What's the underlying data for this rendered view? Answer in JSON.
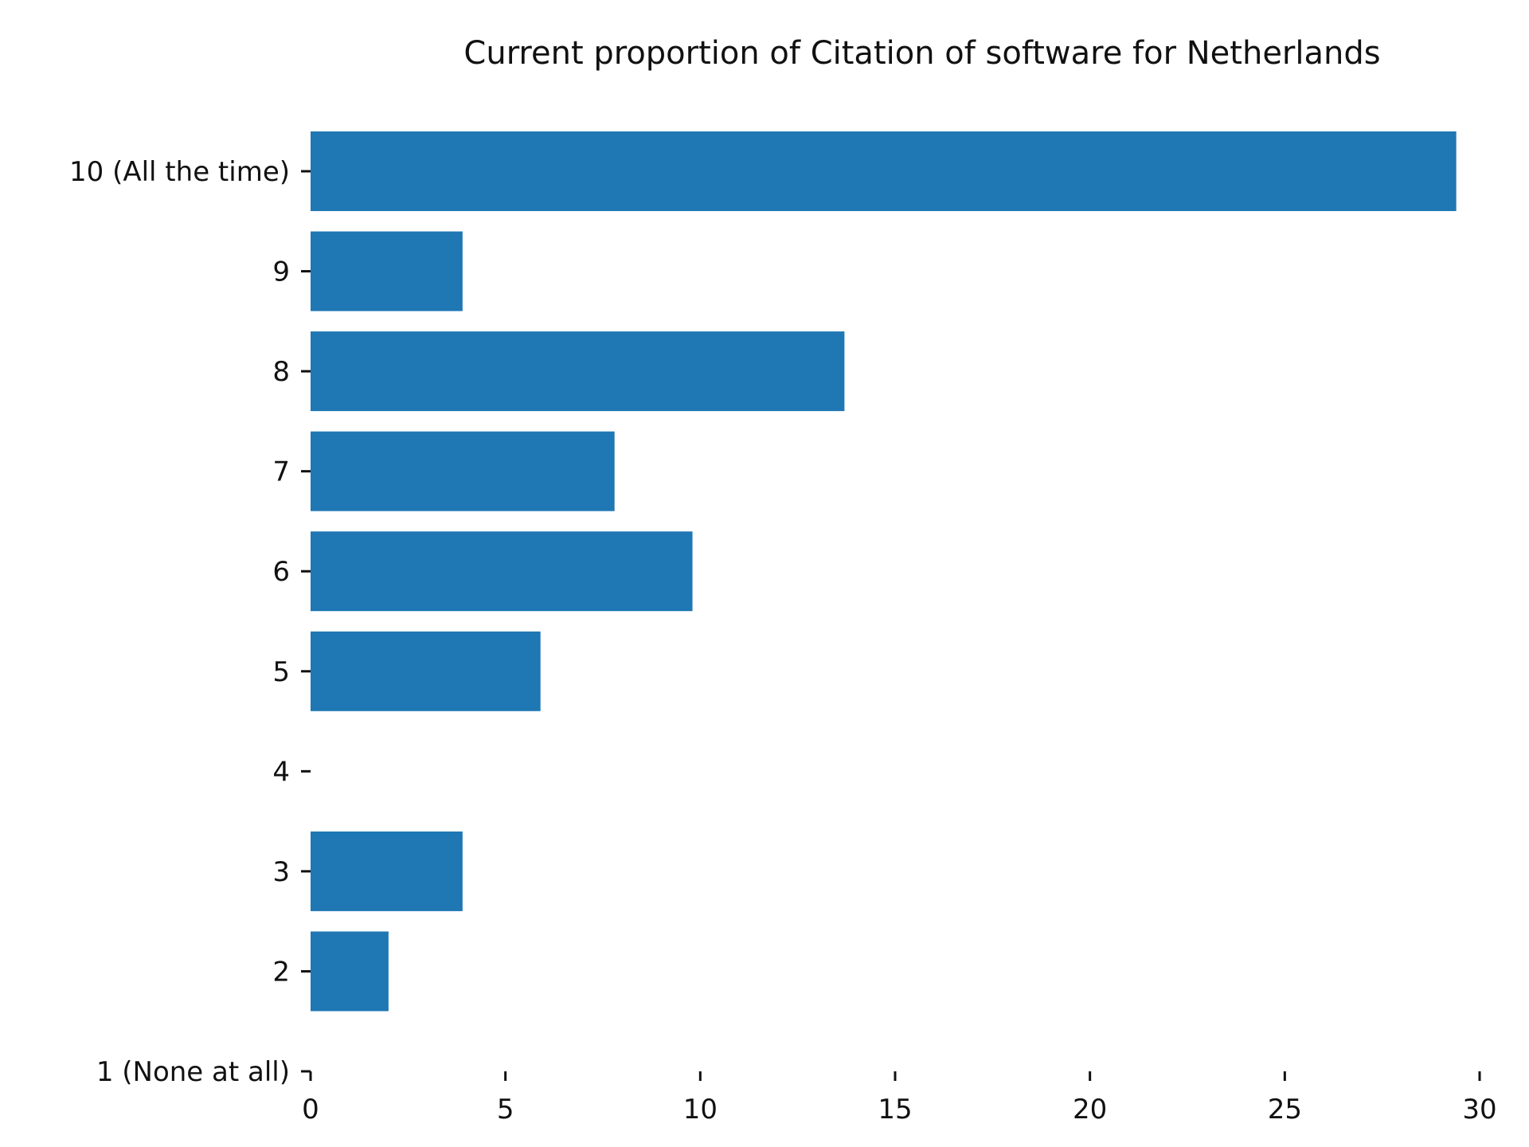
{
  "chart_data": {
    "type": "bar",
    "orientation": "horizontal",
    "title": "Current proportion of Citation of software for Netherlands",
    "xlabel": "",
    "ylabel": "",
    "categories": [
      "10 (All the time)",
      "9",
      "8",
      "7",
      "6",
      "5",
      "4",
      "3",
      "2",
      "1 (None at all)"
    ],
    "values": [
      29.4,
      3.9,
      13.7,
      7.8,
      9.8,
      5.9,
      0,
      3.9,
      2.0,
      0
    ],
    "xlim": [
      0,
      30
    ],
    "xticks": [
      0,
      5,
      10,
      15,
      20,
      25,
      30
    ],
    "grid": false,
    "bar_color": "#1f77b4"
  }
}
